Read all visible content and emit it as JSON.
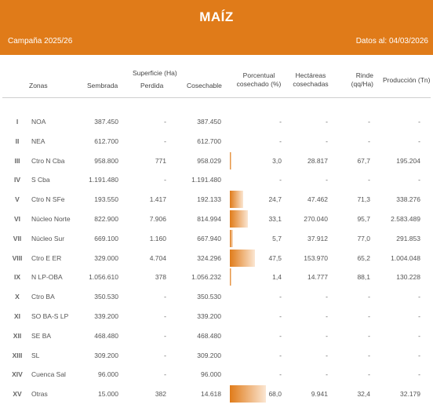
{
  "header": {
    "title": "MAÍZ",
    "campaign": "Campaña 2025/26",
    "date": "Datos al: 04/03/2026",
    "color": "#e07b19"
  },
  "columns": {
    "zonas": "Zonas",
    "sembrada": "Sembrada",
    "superficie": "Superficie (Ha)",
    "perdida": "Perdida",
    "cosechable": "Cosechable",
    "porcentual_1": "Porcentual",
    "porcentual_2": "cosechado (%)",
    "hectareas_1": "Hectáreas",
    "hectareas_2": "cosechadas",
    "rinde_1": "Rinde",
    "rinde_2": "(qq/Ha)",
    "produccion": "Producción (Tn)"
  },
  "rows": [
    {
      "roman": "I",
      "zona": "NOA",
      "sembrada": "387.450",
      "perdida": "-",
      "cosechable": "387.450",
      "pct": "-",
      "pct_value": 0,
      "hect": "-",
      "rinde": "-",
      "prod": "-"
    },
    {
      "roman": "II",
      "zona": "NEA",
      "sembrada": "612.700",
      "perdida": "-",
      "cosechable": "612.700",
      "pct": "-",
      "pct_value": 0,
      "hect": "-",
      "rinde": "-",
      "prod": "-"
    },
    {
      "roman": "III",
      "zona": "Ctro N Cba",
      "sembrada": "958.800",
      "perdida": "771",
      "cosechable": "958.029",
      "pct": "3,0",
      "pct_value": 3.0,
      "hect": "28.817",
      "rinde": "67,7",
      "prod": "195.204"
    },
    {
      "roman": "IV",
      "zona": "S Cba",
      "sembrada": "1.191.480",
      "perdida": "-",
      "cosechable": "1.191.480",
      "pct": "-",
      "pct_value": 0,
      "hect": "-",
      "rinde": "-",
      "prod": "-"
    },
    {
      "roman": "V",
      "zona": "Ctro N SFe",
      "sembrada": "193.550",
      "perdida": "1.417",
      "cosechable": "192.133",
      "pct": "24,7",
      "pct_value": 24.7,
      "hect": "47.462",
      "rinde": "71,3",
      "prod": "338.276"
    },
    {
      "roman": "VI",
      "zona": "Núcleo Norte",
      "sembrada": "822.900",
      "perdida": "7.906",
      "cosechable": "814.994",
      "pct": "33,1",
      "pct_value": 33.1,
      "hect": "270.040",
      "rinde": "95,7",
      "prod": "2.583.489"
    },
    {
      "roman": "VII",
      "zona": "Núcleo Sur",
      "sembrada": "669.100",
      "perdida": "1.160",
      "cosechable": "667.940",
      "pct": "5,7",
      "pct_value": 5.7,
      "hect": "37.912",
      "rinde": "77,0",
      "prod": "291.853"
    },
    {
      "roman": "VIII",
      "zona": "Ctro E ER",
      "sembrada": "329.000",
      "perdida": "4.704",
      "cosechable": "324.296",
      "pct": "47,5",
      "pct_value": 47.5,
      "hect": "153.970",
      "rinde": "65,2",
      "prod": "1.004.048"
    },
    {
      "roman": "IX",
      "zona": "N LP-OBA",
      "sembrada": "1.056.610",
      "perdida": "378",
      "cosechable": "1.056.232",
      "pct": "1,4",
      "pct_value": 1.4,
      "hect": "14.777",
      "rinde": "88,1",
      "prod": "130.228"
    },
    {
      "roman": "X",
      "zona": "Ctro BA",
      "sembrada": "350.530",
      "perdida": "-",
      "cosechable": "350.530",
      "pct": "-",
      "pct_value": 0,
      "hect": "-",
      "rinde": "-",
      "prod": "-"
    },
    {
      "roman": "XI",
      "zona": "SO BA-S LP",
      "sembrada": "339.200",
      "perdida": "-",
      "cosechable": "339.200",
      "pct": "-",
      "pct_value": 0,
      "hect": "-",
      "rinde": "-",
      "prod": "-"
    },
    {
      "roman": "XII",
      "zona": "SE BA",
      "sembrada": "468.480",
      "perdida": "-",
      "cosechable": "468.480",
      "pct": "-",
      "pct_value": 0,
      "hect": "-",
      "rinde": "-",
      "prod": "-"
    },
    {
      "roman": "XIII",
      "zona": "SL",
      "sembrada": "309.200",
      "perdida": "-",
      "cosechable": "309.200",
      "pct": "-",
      "pct_value": 0,
      "hect": "-",
      "rinde": "-",
      "prod": "-"
    },
    {
      "roman": "XIV",
      "zona": "Cuenca Sal",
      "sembrada": "96.000",
      "perdida": "-",
      "cosechable": "96.000",
      "pct": "-",
      "pct_value": 0,
      "hect": "-",
      "rinde": "-",
      "prod": "-"
    },
    {
      "roman": "XV",
      "zona": "Otras",
      "sembrada": "15.000",
      "perdida": "382",
      "cosechable": "14.618",
      "pct": "68,0",
      "pct_value": 68.0,
      "hect": "9.941",
      "rinde": "32,4",
      "prod": "32.179"
    }
  ]
}
